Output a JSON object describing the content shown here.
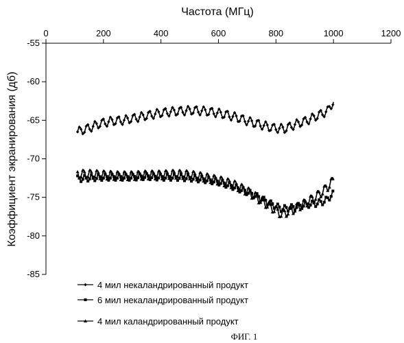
{
  "chart_data": {
    "type": "line",
    "xlabel": "Частота (МГц)",
    "ylabel": "Коэффициент экранирования (дб)",
    "x_axis_position": "top",
    "xlim": [
      0,
      1200
    ],
    "ylim": [
      -85,
      -55
    ],
    "x_ticks": [
      "0",
      "200",
      "400",
      "600",
      "800",
      "1000",
      "1200"
    ],
    "y_ticks": [
      "-55",
      "-60",
      "-65",
      "-70",
      "-75",
      "-80",
      "-85"
    ],
    "grid": false,
    "legend_position": "bottom",
    "caption": "ФИГ. 1",
    "series": [
      {
        "name": "4 мил некаландрированный продукт",
        "marker": "diamond",
        "x": [
          110,
          150,
          190,
          230,
          270,
          310,
          350,
          390,
          430,
          470,
          510,
          550,
          590,
          630,
          670,
          710,
          750,
          790,
          830,
          870,
          910,
          950,
          980,
          1000
        ],
        "values": [
          -66.5,
          -66.0,
          -65.4,
          -65.1,
          -65.0,
          -64.7,
          -64.4,
          -64.1,
          -63.9,
          -63.8,
          -63.7,
          -63.8,
          -64.0,
          -64.3,
          -64.7,
          -65.2,
          -65.6,
          -66.0,
          -66.1,
          -65.5,
          -65.0,
          -64.3,
          -63.8,
          -62.5
        ],
        "wave_amplitude": 0.55,
        "wave_period": 27
      },
      {
        "name": "6 мил некаландрированный продукт",
        "marker": "square",
        "x": [
          110,
          150,
          200,
          250,
          300,
          350,
          400,
          450,
          500,
          550,
          600,
          650,
          700,
          740,
          780,
          820,
          860,
          900,
          940,
          970,
          1000
        ],
        "values": [
          -72.6,
          -72.5,
          -72.4,
          -72.4,
          -72.4,
          -72.3,
          -72.4,
          -72.4,
          -72.5,
          -72.7,
          -73.0,
          -73.6,
          -74.3,
          -75.0,
          -75.8,
          -76.5,
          -76.3,
          -76.0,
          -75.8,
          -75.5,
          -74.5
        ],
        "wave_amplitude": 0.4,
        "wave_period": 24
      },
      {
        "name": "4 мил каландрированный продукт",
        "marker": "triangle",
        "x": [
          110,
          150,
          200,
          250,
          300,
          350,
          400,
          450,
          500,
          550,
          600,
          650,
          700,
          740,
          780,
          820,
          860,
          900,
          940,
          970,
          1000
        ],
        "values": [
          -72.0,
          -72.0,
          -72.1,
          -72.2,
          -72.2,
          -72.1,
          -72.1,
          -72.0,
          -72.1,
          -72.4,
          -72.8,
          -73.3,
          -74.2,
          -75.2,
          -76.2,
          -77.2,
          -76.6,
          -75.8,
          -74.9,
          -74.0,
          -72.8
        ],
        "wave_amplitude": 0.6,
        "wave_period": 24
      }
    ]
  }
}
